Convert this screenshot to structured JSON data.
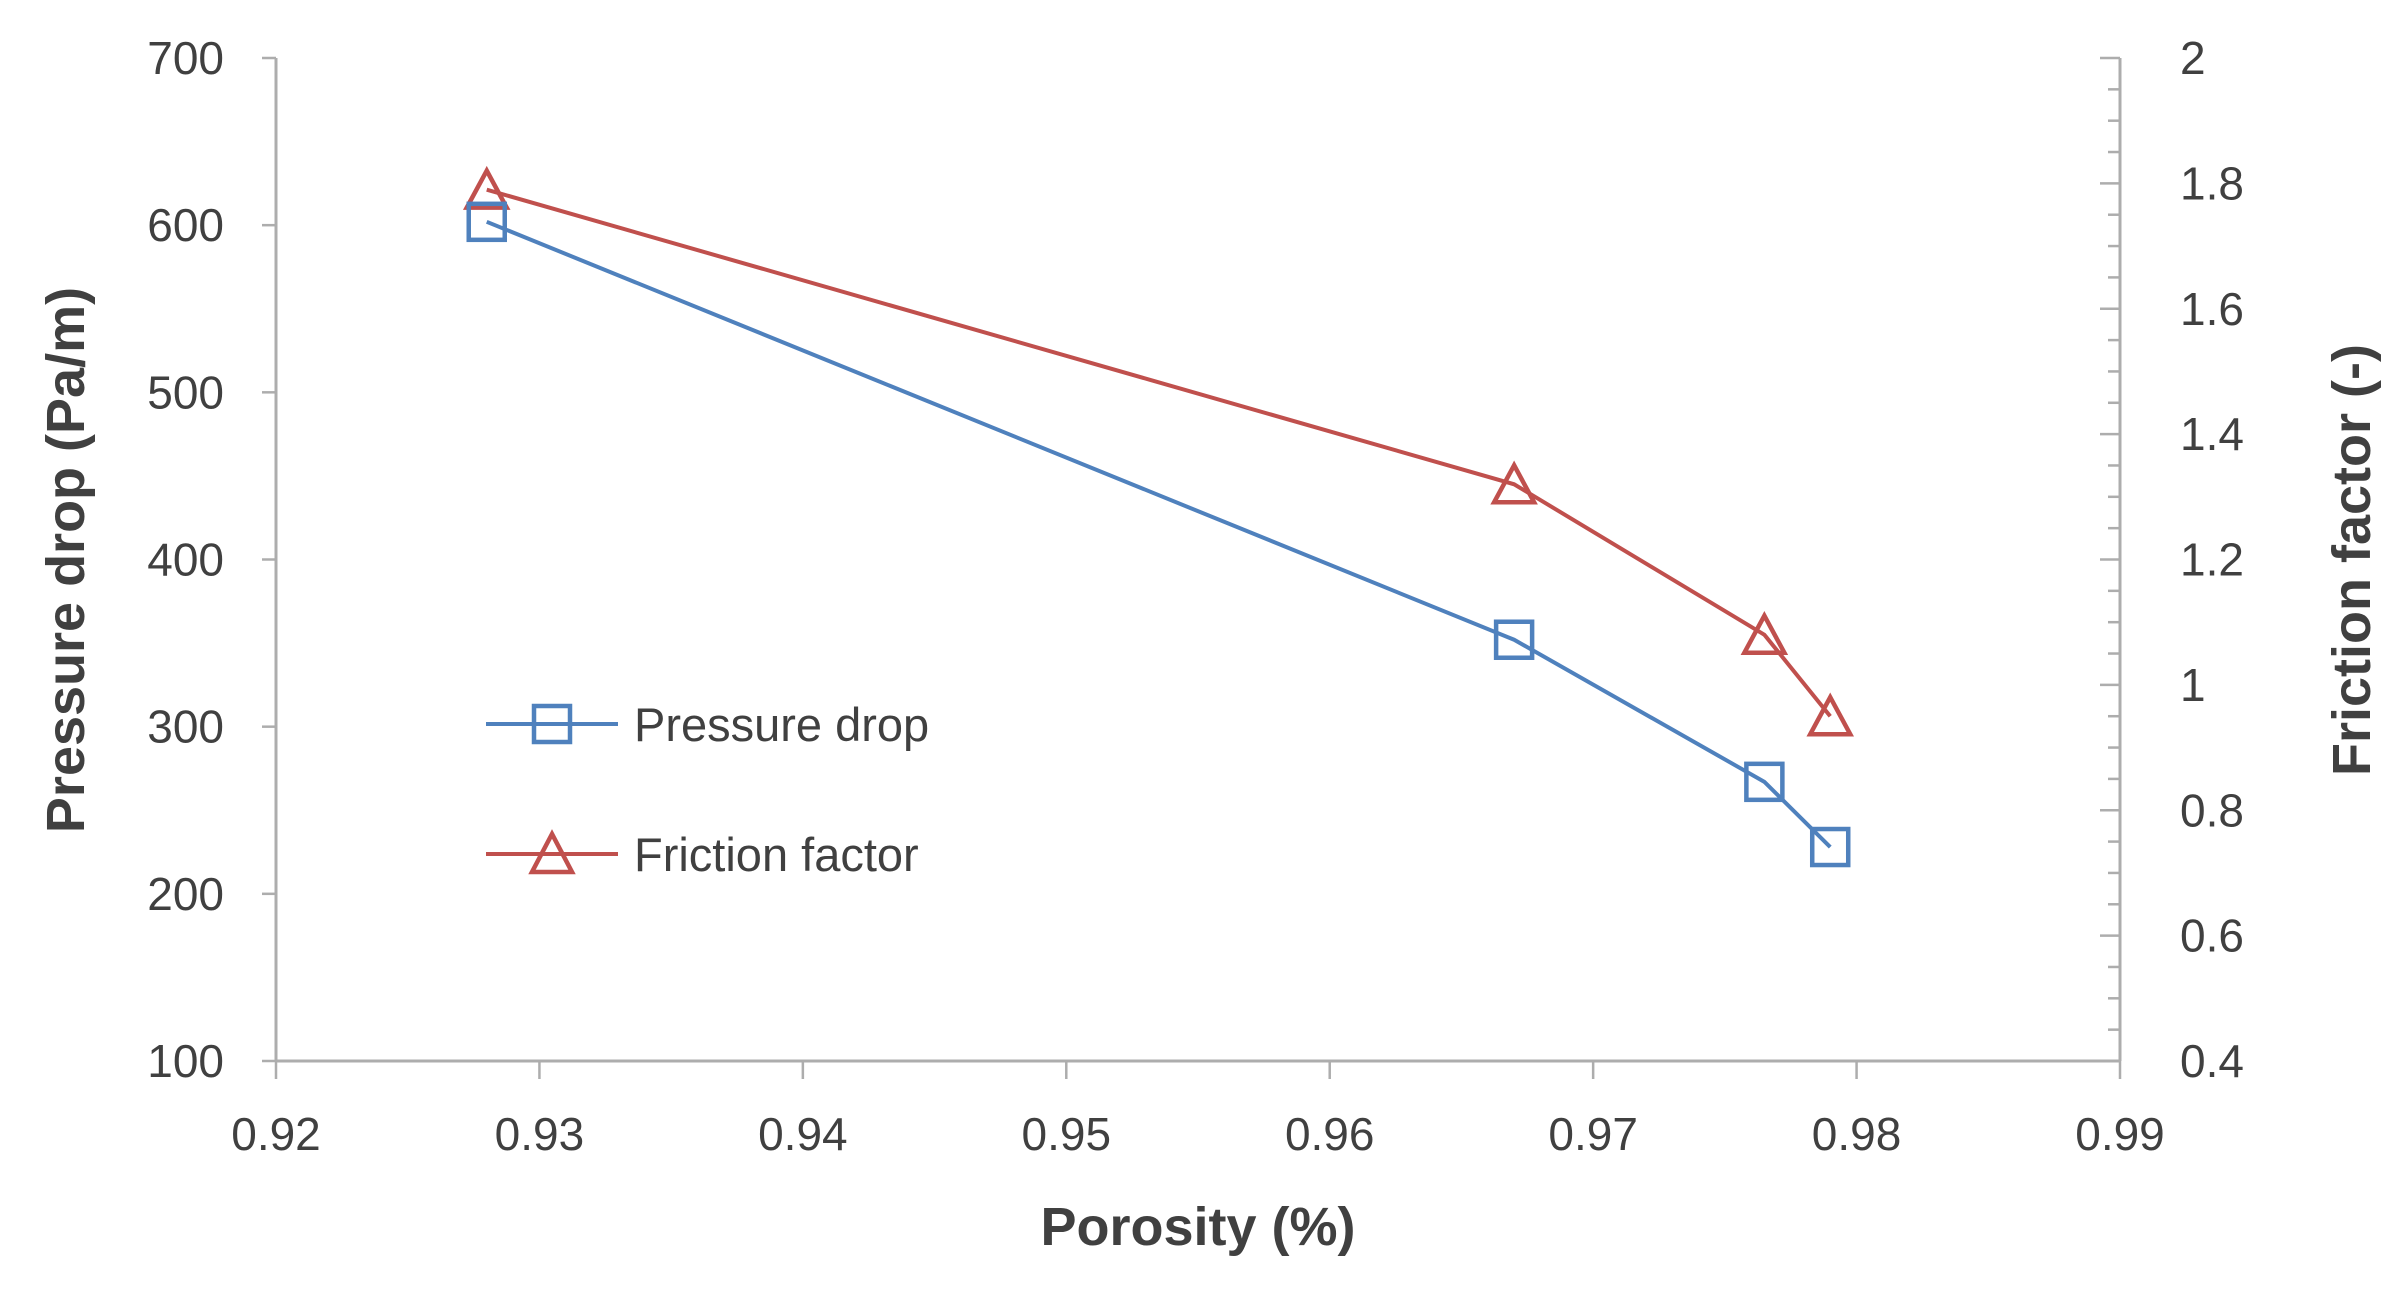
{
  "chart_data": {
    "type": "line",
    "title": "",
    "xlabel": "Porosity (%)",
    "ylabel_left": "Pressure drop (Pa/m)",
    "ylabel_right": "Friction factor (-)",
    "grid": false,
    "legend_position": "inside-left-middle",
    "x_axis": {
      "min": 0.92,
      "max": 0.99,
      "tick_step": 0.01,
      "tick_labels": [
        "0.92",
        "0.93",
        "0.94",
        "0.95",
        "0.96",
        "0.97",
        "0.98",
        "0.99"
      ]
    },
    "y_left_axis": {
      "min": 100,
      "max": 700,
      "tick_step": 100,
      "tick_labels": [
        "100",
        "200",
        "300",
        "400",
        "500",
        "600",
        "700"
      ]
    },
    "y_right_axis": {
      "min": 0.4,
      "max": 2,
      "tick_step": 0.2,
      "minor_tick_step": 0.05,
      "tick_labels": [
        "0.4",
        "0.6",
        "0.8",
        "1",
        "1.2",
        "1.4",
        "1.6",
        "1.8",
        "2"
      ]
    },
    "series": [
      {
        "name": "Pressure drop",
        "axis": "left",
        "color": "#4F81BD",
        "marker": "square",
        "x": [
          0.928,
          0.967,
          0.9765,
          0.979
        ],
        "y": [
          602,
          352,
          267,
          228
        ]
      },
      {
        "name": "Friction factor",
        "axis": "right",
        "color": "#C0504D",
        "marker": "triangle",
        "x": [
          0.928,
          0.967,
          0.9765,
          0.979
        ],
        "y": [
          1.79,
          1.32,
          1.08,
          0.95
        ]
      }
    ],
    "colors": {
      "axis_line": "#ADADAD",
      "tick": "#ADADAD",
      "text": "#404040",
      "background": "#ffffff"
    }
  }
}
